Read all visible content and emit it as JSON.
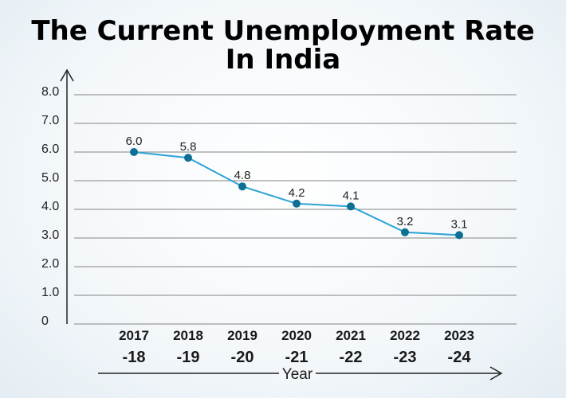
{
  "chart_data": {
    "type": "line",
    "title_line1": "The Current Unemployment Rate",
    "title_line2": "In India",
    "xlabel": "Year",
    "ylabel": "",
    "ylim": [
      0,
      8
    ],
    "y_ticks": [
      "8.0",
      "7.0",
      "6.0",
      "5.0",
      "4.0",
      "3.0",
      "2.0",
      "1.0",
      "0"
    ],
    "categories": [
      {
        "top": "2017",
        "bottom": "-18"
      },
      {
        "top": "2018",
        "bottom": "-19"
      },
      {
        "top": "2019",
        "bottom": "-20"
      },
      {
        "top": "2020",
        "bottom": "-21"
      },
      {
        "top": "2021",
        "bottom": "-22"
      },
      {
        "top": "2022",
        "bottom": "-23"
      },
      {
        "top": "2023",
        "bottom": "-24"
      }
    ],
    "values": [
      6.0,
      5.8,
      4.8,
      4.2,
      4.1,
      3.2,
      3.1
    ],
    "value_labels": [
      "6.0",
      "5.8",
      "4.8",
      "4.2",
      "4.1",
      "3.2",
      "3.1"
    ],
    "grid": true,
    "colors": {
      "line": "#2aa3d6",
      "marker": "#0d6f94",
      "grid": "#9a9a9a",
      "axis": "#222222"
    }
  }
}
